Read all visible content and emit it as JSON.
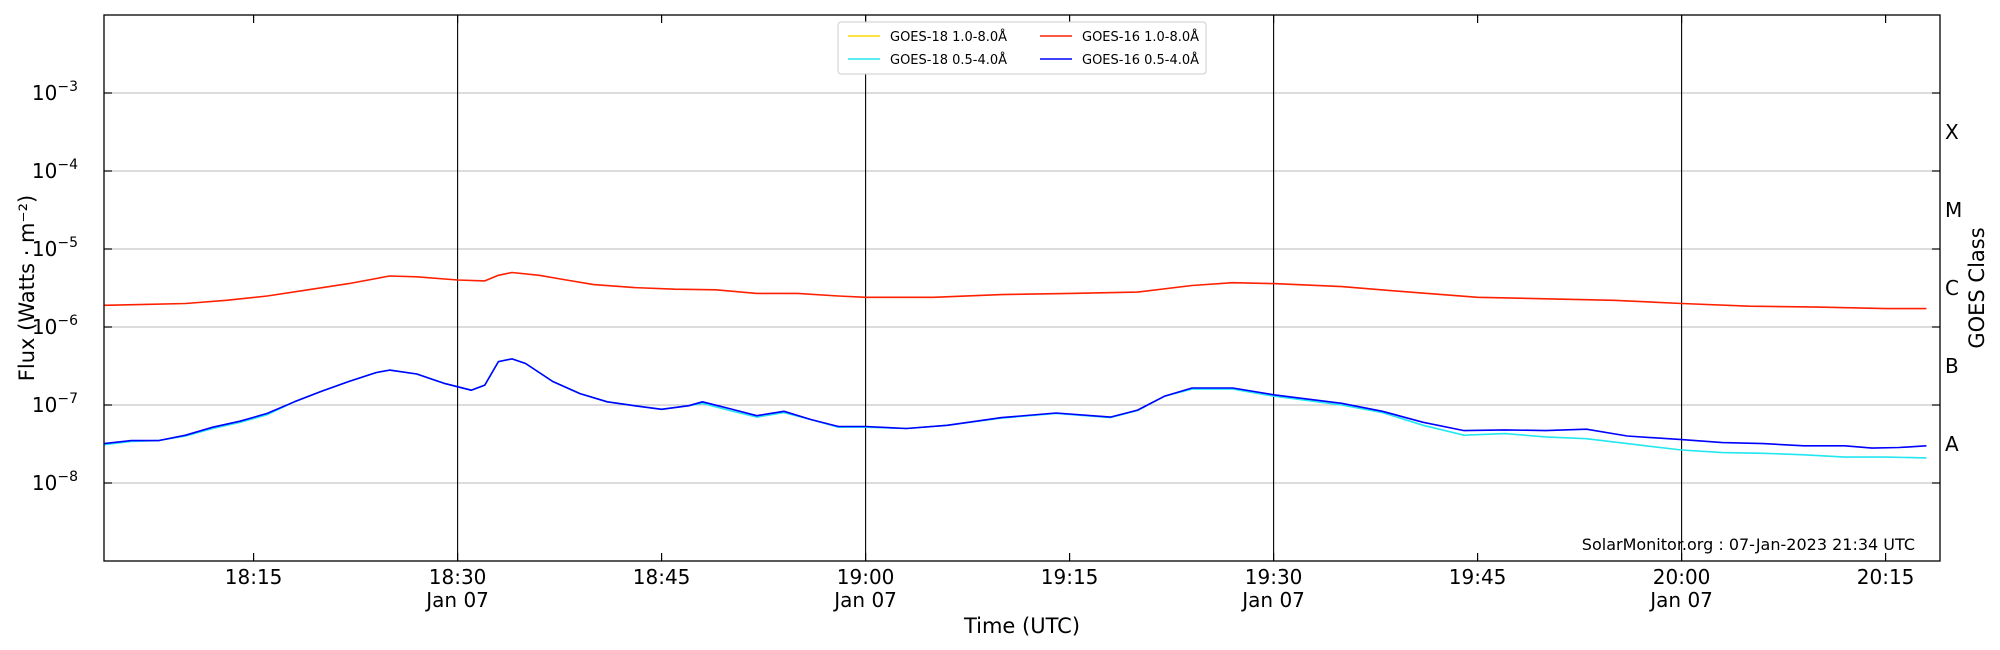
{
  "chart_data": {
    "type": "line",
    "xlabel": "Time (UTC)",
    "ylabel": "Flux (Watts · m⁻²)",
    "ylabel_right": "GOES Class",
    "credit": "SolarMonitor.org : 07-Jan-2023 21:34 UTC",
    "y_scale": "log",
    "ylim": [
      1e-09,
      0.01
    ],
    "xlim": [
      "18:04",
      "20:19"
    ],
    "grid": "horizontal at decades",
    "legend_placement": "top-center",
    "x_ticks": [
      {
        "t": "18:15",
        "label": "18:15",
        "sublabel": ""
      },
      {
        "t": "18:30",
        "label": "18:30",
        "sublabel": "Jan 07"
      },
      {
        "t": "18:45",
        "label": "18:45",
        "sublabel": ""
      },
      {
        "t": "19:00",
        "label": "19:00",
        "sublabel": "Jan 07"
      },
      {
        "t": "19:15",
        "label": "19:15",
        "sublabel": ""
      },
      {
        "t": "19:30",
        "label": "19:30",
        "sublabel": "Jan 07"
      },
      {
        "t": "19:45",
        "label": "19:45",
        "sublabel": ""
      },
      {
        "t": "20:00",
        "label": "20:00",
        "sublabel": "Jan 07"
      },
      {
        "t": "20:15",
        "label": "20:15",
        "sublabel": ""
      }
    ],
    "vertical_lines": [
      "18:30",
      "19:00",
      "19:30",
      "20:00"
    ],
    "y_ticks": [
      {
        "value": 1e-08,
        "base": "10",
        "exp": "−8"
      },
      {
        "value": 1e-07,
        "base": "10",
        "exp": "−7"
      },
      {
        "value": 1e-06,
        "base": "10",
        "exp": "−6"
      },
      {
        "value": 1e-05,
        "base": "10",
        "exp": "−5"
      },
      {
        "value": 0.0001,
        "base": "10",
        "exp": "−4"
      },
      {
        "value": 0.001,
        "base": "10",
        "exp": "−3"
      }
    ],
    "goes_classes": [
      {
        "label": "A",
        "value": 3.16e-08
      },
      {
        "label": "B",
        "value": 3.16e-07
      },
      {
        "label": "C",
        "value": 3.16e-06
      },
      {
        "label": "M",
        "value": 3.16e-05
      },
      {
        "label": "X",
        "value": 0.000316
      }
    ],
    "legend": [
      {
        "label": "GOES-18 1.0-8.0Å",
        "color": "#ffd700"
      },
      {
        "label": "GOES-18 0.5-4.0Å",
        "color": "#22e6f0"
      },
      {
        "label": "GOES-16 1.0-8.0Å",
        "color": "#ff2000"
      },
      {
        "label": "GOES-16 0.5-4.0Å",
        "color": "#0000ff"
      }
    ],
    "series": [
      {
        "name": "GOES-16 1.0-8.0Å",
        "color": "#ff2000",
        "points": [
          [
            "18:04",
            1.9e-06
          ],
          [
            "18:07",
            1.95e-06
          ],
          [
            "18:10",
            2e-06
          ],
          [
            "18:13",
            2.2e-06
          ],
          [
            "18:16",
            2.5e-06
          ],
          [
            "18:19",
            3e-06
          ],
          [
            "18:22",
            3.6e-06
          ],
          [
            "18:25",
            4.5e-06
          ],
          [
            "18:27",
            4.4e-06
          ],
          [
            "18:30",
            4e-06
          ],
          [
            "18:32",
            3.9e-06
          ],
          [
            "18:33",
            4.6e-06
          ],
          [
            "18:34",
            5e-06
          ],
          [
            "18:36",
            4.6e-06
          ],
          [
            "18:38",
            4e-06
          ],
          [
            "18:40",
            3.5e-06
          ],
          [
            "18:43",
            3.2e-06
          ],
          [
            "18:46",
            3.05e-06
          ],
          [
            "18:49",
            3e-06
          ],
          [
            "18:52",
            2.7e-06
          ],
          [
            "18:55",
            2.7e-06
          ],
          [
            "18:58",
            2.5e-06
          ],
          [
            "19:00",
            2.4e-06
          ],
          [
            "19:05",
            2.4e-06
          ],
          [
            "19:10",
            2.6e-06
          ],
          [
            "19:15",
            2.7e-06
          ],
          [
            "19:20",
            2.8e-06
          ],
          [
            "19:24",
            3.4e-06
          ],
          [
            "19:27",
            3.7e-06
          ],
          [
            "19:30",
            3.6e-06
          ],
          [
            "19:35",
            3.3e-06
          ],
          [
            "19:40",
            2.8e-06
          ],
          [
            "19:45",
            2.4e-06
          ],
          [
            "19:50",
            2.3e-06
          ],
          [
            "19:55",
            2.2e-06
          ],
          [
            "20:00",
            2e-06
          ],
          [
            "20:05",
            1.85e-06
          ],
          [
            "20:10",
            1.8e-06
          ],
          [
            "20:15",
            1.72e-06
          ],
          [
            "20:18",
            1.72e-06
          ]
        ]
      },
      {
        "name": "GOES-18 0.5-4.0Å",
        "color": "#22e6f0",
        "points": [
          [
            "18:04",
            3.1e-08
          ],
          [
            "18:06",
            3.4e-08
          ],
          [
            "18:08",
            3.5e-08
          ],
          [
            "18:10",
            4e-08
          ],
          [
            "18:12",
            5e-08
          ],
          [
            "18:14",
            6e-08
          ],
          [
            "18:16",
            7.5e-08
          ],
          [
            "18:18",
            1.1e-07
          ],
          [
            "18:20",
            1.5e-07
          ],
          [
            "18:22",
            2e-07
          ],
          [
            "18:24",
            2.6e-07
          ],
          [
            "18:25",
            2.8e-07
          ],
          [
            "18:27",
            2.5e-07
          ],
          [
            "18:29",
            1.9e-07
          ],
          [
            "18:31",
            1.55e-07
          ],
          [
            "18:32",
            1.8e-07
          ],
          [
            "18:33",
            3.6e-07
          ],
          [
            "18:34",
            3.9e-07
          ],
          [
            "18:35",
            3.4e-07
          ],
          [
            "18:37",
            2e-07
          ],
          [
            "18:39",
            1.4e-07
          ],
          [
            "18:41",
            1.1e-07
          ],
          [
            "18:43",
            9.8e-08
          ],
          [
            "18:45",
            8.8e-08
          ],
          [
            "18:47",
            9.8e-08
          ],
          [
            "18:48",
            1.05e-07
          ],
          [
            "18:50",
            8.5e-08
          ],
          [
            "18:52",
            7e-08
          ],
          [
            "18:54",
            8e-08
          ],
          [
            "18:56",
            6.5e-08
          ],
          [
            "18:58",
            5.2e-08
          ],
          [
            "19:00",
            5.2e-08
          ],
          [
            "19:03",
            5e-08
          ],
          [
            "19:06",
            5.5e-08
          ],
          [
            "19:10",
            6.8e-08
          ],
          [
            "19:14",
            7.8e-08
          ],
          [
            "19:18",
            6.9e-08
          ],
          [
            "19:20",
            8.5e-08
          ],
          [
            "19:22",
            1.3e-07
          ],
          [
            "19:24",
            1.6e-07
          ],
          [
            "19:27",
            1.6e-07
          ],
          [
            "19:30",
            1.3e-07
          ],
          [
            "19:35",
            1e-07
          ],
          [
            "19:38",
            8e-08
          ],
          [
            "19:41",
            5.5e-08
          ],
          [
            "19:44",
            4.1e-08
          ],
          [
            "19:47",
            4.3e-08
          ],
          [
            "19:50",
            3.9e-08
          ],
          [
            "19:53",
            3.7e-08
          ],
          [
            "19:56",
            3.2e-08
          ],
          [
            "20:00",
            2.65e-08
          ],
          [
            "20:03",
            2.45e-08
          ],
          [
            "20:06",
            2.4e-08
          ],
          [
            "20:09",
            2.3e-08
          ],
          [
            "20:12",
            2.15e-08
          ],
          [
            "20:15",
            2.15e-08
          ],
          [
            "20:18",
            2.1e-08
          ]
        ]
      },
      {
        "name": "GOES-16 0.5-4.0Å",
        "color": "#0000ff",
        "points": [
          [
            "18:04",
            3.2e-08
          ],
          [
            "18:06",
            3.5e-08
          ],
          [
            "18:08",
            3.5e-08
          ],
          [
            "18:10",
            4.1e-08
          ],
          [
            "18:12",
            5.2e-08
          ],
          [
            "18:14",
            6.2e-08
          ],
          [
            "18:16",
            7.8e-08
          ],
          [
            "18:18",
            1.1e-07
          ],
          [
            "18:20",
            1.5e-07
          ],
          [
            "18:22",
            2e-07
          ],
          [
            "18:24",
            2.6e-07
          ],
          [
            "18:25",
            2.8e-07
          ],
          [
            "18:27",
            2.5e-07
          ],
          [
            "18:29",
            1.9e-07
          ],
          [
            "18:31",
            1.55e-07
          ],
          [
            "18:32",
            1.8e-07
          ],
          [
            "18:33",
            3.6e-07
          ],
          [
            "18:34",
            3.9e-07
          ],
          [
            "18:35",
            3.4e-07
          ],
          [
            "18:37",
            2e-07
          ],
          [
            "18:39",
            1.4e-07
          ],
          [
            "18:41",
            1.1e-07
          ],
          [
            "18:43",
            9.8e-08
          ],
          [
            "18:45",
            8.8e-08
          ],
          [
            "18:47",
            9.8e-08
          ],
          [
            "18:48",
            1.1e-07
          ],
          [
            "18:50",
            9e-08
          ],
          [
            "18:52",
            7.3e-08
          ],
          [
            "18:54",
            8.3e-08
          ],
          [
            "18:56",
            6.5e-08
          ],
          [
            "18:58",
            5.3e-08
          ],
          [
            "19:00",
            5.3e-08
          ],
          [
            "19:03",
            5e-08
          ],
          [
            "19:06",
            5.5e-08
          ],
          [
            "19:10",
            6.9e-08
          ],
          [
            "19:14",
            7.9e-08
          ],
          [
            "19:18",
            7e-08
          ],
          [
            "19:20",
            8.6e-08
          ],
          [
            "19:22",
            1.3e-07
          ],
          [
            "19:24",
            1.65e-07
          ],
          [
            "19:27",
            1.65e-07
          ],
          [
            "19:30",
            1.35e-07
          ],
          [
            "19:35",
            1.05e-07
          ],
          [
            "19:38",
            8.3e-08
          ],
          [
            "19:41",
            6e-08
          ],
          [
            "19:44",
            4.7e-08
          ],
          [
            "19:47",
            4.8e-08
          ],
          [
            "19:50",
            4.7e-08
          ],
          [
            "19:53",
            4.9e-08
          ],
          [
            "19:56",
            4e-08
          ],
          [
            "20:00",
            3.6e-08
          ],
          [
            "20:03",
            3.3e-08
          ],
          [
            "20:06",
            3.2e-08
          ],
          [
            "20:09",
            3e-08
          ],
          [
            "20:12",
            3e-08
          ],
          [
            "20:14",
            2.8e-08
          ],
          [
            "20:16",
            2.85e-08
          ],
          [
            "20:18",
            3e-08
          ]
        ]
      }
    ]
  }
}
